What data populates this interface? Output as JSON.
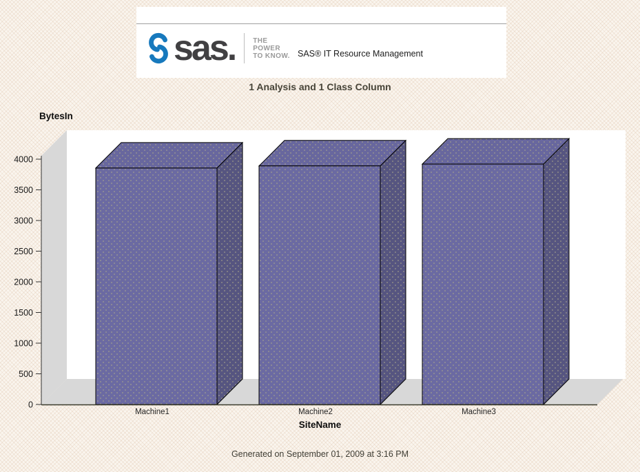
{
  "header": {
    "logo": {
      "icon": "sas-swirl-icon",
      "wordmark": "sas.",
      "tagline_lines": [
        "THE",
        "POWER",
        "TO KNOW."
      ],
      "brand_blue": "#1779bd",
      "wordmark_color": "#414042"
    },
    "product_name": "SAS® IT Resource Management"
  },
  "title": "1 Analysis and 1 Class Column",
  "footer": "Generated on September 01, 2009 at 3:16 PM",
  "chart_data": {
    "type": "bar",
    "style": "3d",
    "title": "1 Analysis and 1 Class Column",
    "xlabel": "SiteName",
    "ylabel": "BytesIn",
    "categories": [
      "Machine1",
      "Machine2",
      "Machine3"
    ],
    "values": [
      3855,
      3890,
      3920
    ],
    "ylim": [
      0,
      4000
    ],
    "ytick_step": 500,
    "grid": false,
    "legend": "none",
    "colors": {
      "bar_front": "#6b6aa2",
      "bar_top": "#68679e",
      "bar_side": "#565580",
      "bar_outline": "#000000",
      "dot_texture": "#aaa68c",
      "wall": "#d8d8d8",
      "back_wall": "#ffffff",
      "axis_line": "#3c3c2c",
      "tick_line": "#333333"
    }
  }
}
